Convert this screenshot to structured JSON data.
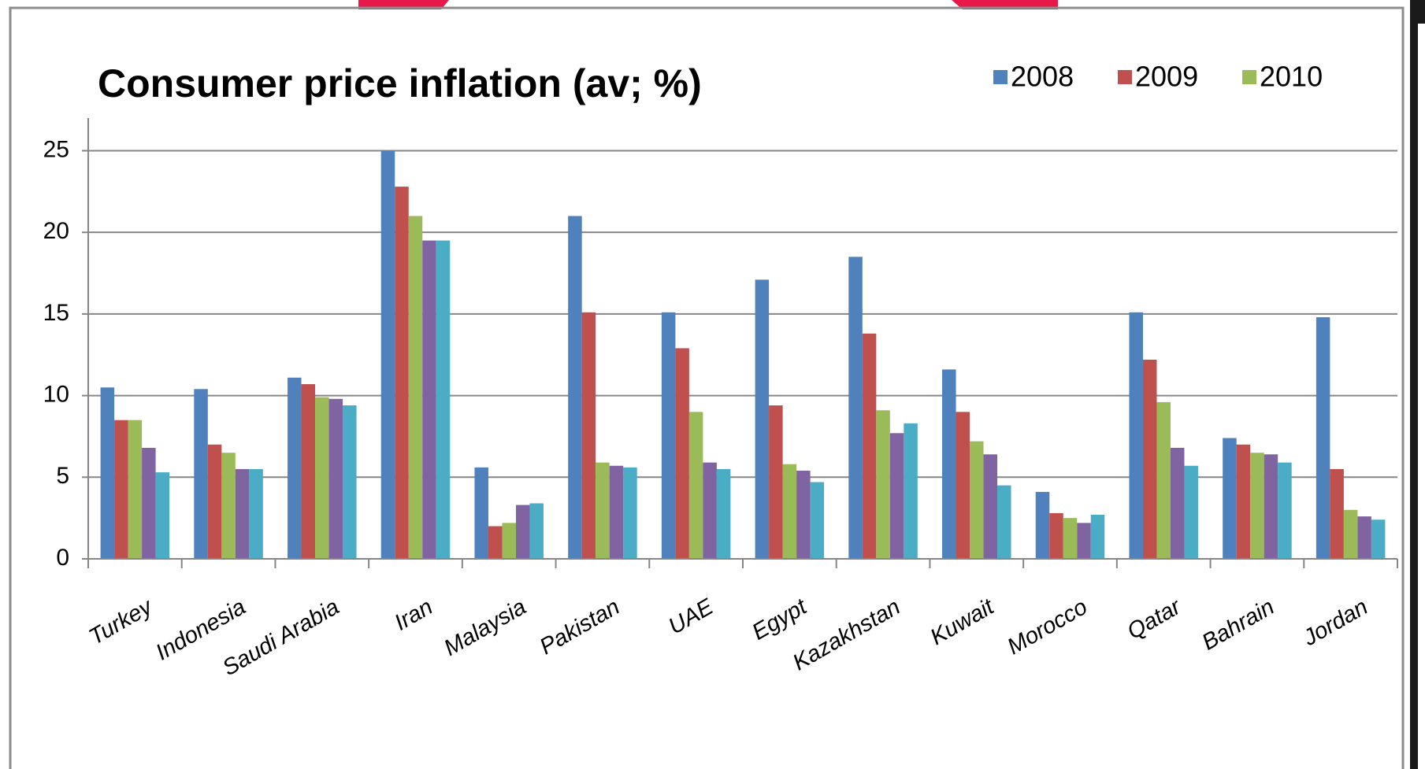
{
  "chart_data": {
    "type": "bar",
    "title": "Consumer price inflation (av; %)",
    "categories": [
      "Turkey",
      "Indonesia",
      "Saudi Arabia",
      "Iran",
      "Malaysia",
      "Pakistan",
      "UAE",
      "Egypt",
      "Kazakhstan",
      "Kuwait",
      "Morocco",
      "Qatar",
      "Bahrain",
      "Jordan"
    ],
    "series": [
      {
        "name": "2008",
        "color": "#4f81bd",
        "values": [
          10.5,
          10.4,
          11.1,
          25.0,
          5.6,
          21.0,
          15.1,
          17.1,
          18.5,
          11.6,
          4.1,
          15.1,
          7.4,
          14.8
        ]
      },
      {
        "name": "2009",
        "color": "#c0504d",
        "values": [
          8.5,
          7.0,
          10.7,
          22.8,
          2.0,
          15.1,
          12.9,
          9.4,
          13.8,
          9.0,
          2.8,
          12.2,
          7.0,
          5.5
        ]
      },
      {
        "name": "2010",
        "color": "#9bbb59",
        "values": [
          8.5,
          6.5,
          9.9,
          21.0,
          2.2,
          5.9,
          9.0,
          5.8,
          9.1,
          7.2,
          2.5,
          9.6,
          6.5,
          3.0
        ]
      },
      {
        "color": "#8064a2",
        "values": [
          6.8,
          5.5,
          9.8,
          19.5,
          3.3,
          5.7,
          5.9,
          5.4,
          7.7,
          6.4,
          2.2,
          6.8,
          6.4,
          2.6
        ]
      },
      {
        "color": "#4bacc6",
        "values": [
          5.3,
          5.5,
          9.4,
          19.5,
          3.4,
          5.6,
          5.5,
          4.7,
          8.3,
          4.5,
          2.7,
          5.7,
          5.9,
          2.4
        ]
      }
    ],
    "ylim": [
      0,
      27
    ],
    "yticks": [
      0,
      5,
      10,
      15,
      20,
      25
    ],
    "grid": true,
    "legend": "top-right"
  }
}
